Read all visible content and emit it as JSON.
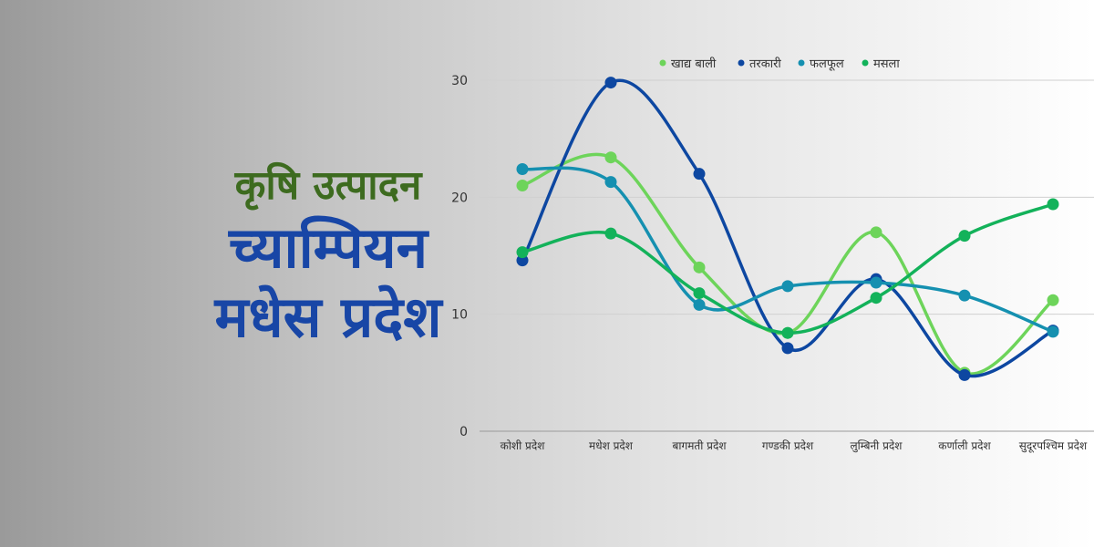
{
  "headline": {
    "subtitle": "कृषि उत्पादन",
    "title_line1": "च्याम्पियन",
    "title_line2": "मधेस प्रदेश"
  },
  "chart_data": {
    "type": "line",
    "categories": [
      "कोशी प्रदेश",
      "मधेश प्रदेश",
      "बागमती प्रदेश",
      "गण्डकी प्रदेश",
      "लुम्बिनी प्रदेश",
      "कर्णाली प्रदेश",
      "सुदूरपश्चिम प्रदेश"
    ],
    "series": [
      {
        "name": "खाद्य बाली",
        "color": "#6dd45a",
        "values": [
          21,
          23.4,
          14,
          8.4,
          17,
          5,
          11.2
        ]
      },
      {
        "name": "तरकारी",
        "color": "#0d47a1",
        "values": [
          14.6,
          29.8,
          22,
          7.1,
          13,
          4.8,
          8.6
        ]
      },
      {
        "name": "फलफूल",
        "color": "#1590b0",
        "values": [
          22.4,
          21.3,
          10.8,
          12.4,
          12.7,
          11.6,
          8.5
        ]
      },
      {
        "name": "मसला",
        "color": "#13b25a",
        "values": [
          15.3,
          16.9,
          11.8,
          8.4,
          11.4,
          16.7,
          19.4
        ]
      }
    ],
    "ylim": [
      0,
      30
    ],
    "yticks": [
      0,
      10,
      20,
      30
    ],
    "grid": true,
    "smooth": true,
    "legend_position": "top"
  }
}
